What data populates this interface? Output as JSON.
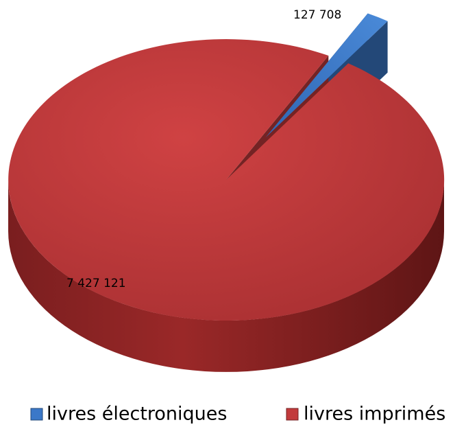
{
  "chart_data": {
    "type": "pie3d",
    "categories": [
      "livres électroniques",
      "livres imprimés"
    ],
    "values": [
      127708,
      7427121
    ],
    "value_labels": [
      "127 708",
      "7 427 121"
    ],
    "colors": [
      "#3b78c8",
      "#c23b3c"
    ],
    "legend": "bottom"
  }
}
